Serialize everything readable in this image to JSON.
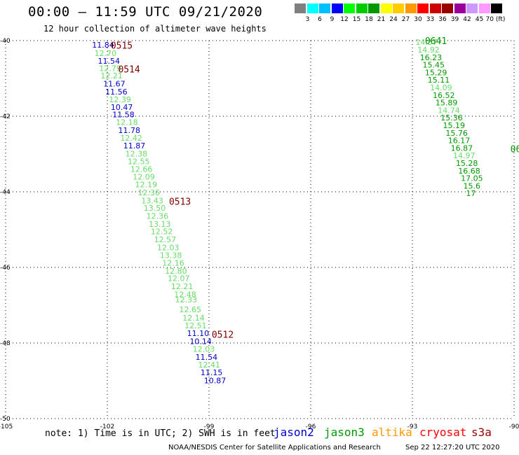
{
  "header": {
    "title": "00:00 – 11:59 UTC 09/21/2020",
    "subtitle": "12 hour collection of altimeter wave heights"
  },
  "legend": {
    "colors": [
      "#7f7f7f",
      "#00ffff",
      "#00bfff",
      "#0000ff",
      "#00ff00",
      "#00cc00",
      "#009900",
      "#ffff00",
      "#ffcc00",
      "#ff9900",
      "#ff0000",
      "#cc0000",
      "#990000",
      "#990099",
      "#cc99ff",
      "#ff99ff",
      "#000000"
    ],
    "labels": [
      "3",
      "6",
      "9",
      "12",
      "15",
      "18",
      "21",
      "24",
      "27",
      "30",
      "33",
      "36",
      "39",
      "42",
      "45",
      "70 (ft)"
    ]
  },
  "axes": {
    "lon_ticks": [
      "-105",
      "-102",
      "-99",
      "-96",
      "-93",
      "-90"
    ],
    "lat_ticks": [
      "-40",
      "-42",
      "-44",
      "-46",
      "-48",
      "-50"
    ],
    "lon_range": [
      -105,
      -90
    ],
    "lat_range": [
      -40,
      -50
    ]
  },
  "track_colors": {
    "jason2": "#0000cc",
    "jason3": "#009900",
    "light": "#66dd66",
    "time": "#800000"
  },
  "tracks": [
    {
      "name": "west",
      "points": [
        {
          "label": "11.84",
          "c": "jason2",
          "lon": -102.45,
          "lat": -40.11
        },
        {
          "label": "12.70",
          "c": "light",
          "lon": -102.38,
          "lat": -40.33
        },
        {
          "label": "11.54",
          "c": "jason2",
          "lon": -102.28,
          "lat": -40.54
        },
        {
          "label": "12.79",
          "c": "light",
          "lon": -102.24,
          "lat": -40.73
        },
        {
          "label": "12.21",
          "c": "light",
          "lon": -102.2,
          "lat": -40.93
        },
        {
          "label": "11.67",
          "c": "jason2",
          "lon": -102.12,
          "lat": -41.14
        },
        {
          "label": "11.56",
          "c": "jason2",
          "lon": -102.06,
          "lat": -41.35
        },
        {
          "label": "12.39",
          "c": "light",
          "lon": -101.95,
          "lat": -41.56
        },
        {
          "label": "10.47",
          "c": "jason2",
          "lon": -101.9,
          "lat": -41.76
        },
        {
          "label": "11.58",
          "c": "jason2",
          "lon": -101.85,
          "lat": -41.95
        },
        {
          "label": "12.18",
          "c": "light",
          "lon": -101.75,
          "lat": -42.16
        },
        {
          "label": "11.78",
          "c": "jason2",
          "lon": -101.68,
          "lat": -42.37
        },
        {
          "label": "12.42",
          "c": "light",
          "lon": -101.62,
          "lat": -42.57
        },
        {
          "label": "11.87",
          "c": "jason2",
          "lon": -101.53,
          "lat": -42.78
        },
        {
          "label": "12.38",
          "c": "light",
          "lon": -101.47,
          "lat": -42.99
        },
        {
          "label": "12.55",
          "c": "light",
          "lon": -101.4,
          "lat": -43.19
        },
        {
          "label": "12.66",
          "c": "light",
          "lon": -101.32,
          "lat": -43.4
        },
        {
          "label": "12.09",
          "c": "light",
          "lon": -101.25,
          "lat": -43.6
        },
        {
          "label": "12.19",
          "c": "light",
          "lon": -101.18,
          "lat": -43.81
        },
        {
          "label": "12.36",
          "c": "light",
          "lon": -101.1,
          "lat": -44.02
        },
        {
          "label": "13.43",
          "c": "light",
          "lon": -101.0,
          "lat": -44.23
        },
        {
          "label": "13.50",
          "c": "light",
          "lon": -100.93,
          "lat": -44.43
        },
        {
          "label": "12.36",
          "c": "light",
          "lon": -100.85,
          "lat": -44.64
        },
        {
          "label": "13.13",
          "c": "light",
          "lon": -100.78,
          "lat": -44.85
        },
        {
          "label": "12.52",
          "c": "light",
          "lon": -100.72,
          "lat": -45.05
        },
        {
          "label": "12.57",
          "c": "light",
          "lon": -100.62,
          "lat": -45.26
        },
        {
          "label": "12.03",
          "c": "light",
          "lon": -100.53,
          "lat": -45.47
        },
        {
          "label": "13.38",
          "c": "light",
          "lon": -100.45,
          "lat": -45.68
        },
        {
          "label": "12.16",
          "c": "light",
          "lon": -100.38,
          "lat": -45.88
        },
        {
          "label": "12.80",
          "c": "light",
          "lon": -100.3,
          "lat": -46.09
        },
        {
          "label": "12.07",
          "c": "light",
          "lon": -100.22,
          "lat": -46.29
        },
        {
          "label": "12.21",
          "c": "light",
          "lon": -100.12,
          "lat": -46.5
        },
        {
          "label": "12.48",
          "c": "light",
          "lon": -100.03,
          "lat": -46.71
        },
        {
          "label": "12.33",
          "c": "light",
          "lon": -100.0,
          "lat": -46.85
        },
        {
          "label": "12.65",
          "c": "light",
          "lon": -99.88,
          "lat": -47.11
        },
        {
          "label": "12.14",
          "c": "light",
          "lon": -99.78,
          "lat": -47.33
        },
        {
          "label": "12.51",
          "c": "light",
          "lon": -99.72,
          "lat": -47.54
        },
        {
          "label": "11.10",
          "c": "jason2",
          "lon": -99.65,
          "lat": -47.74
        },
        {
          "label": "10.14",
          "c": "jason2",
          "lon": -99.57,
          "lat": -47.95
        },
        {
          "label": "12.03",
          "c": "light",
          "lon": -99.48,
          "lat": -48.16
        },
        {
          "label": "11.54",
          "c": "jason2",
          "lon": -99.4,
          "lat": -48.37
        },
        {
          "label": "12.41",
          "c": "light",
          "lon": -99.32,
          "lat": -48.57
        },
        {
          "label": "11.15",
          "c": "jason2",
          "lon": -99.25,
          "lat": -48.78
        },
        {
          "label": "10.87",
          "c": "jason2",
          "lon": -99.15,
          "lat": -48.99
        }
      ],
      "times": [
        {
          "label": "0515",
          "lon": -101.9,
          "lat": -40.12
        },
        {
          "label": "0514",
          "lon": -101.68,
          "lat": -40.75
        },
        {
          "label": "0513",
          "lon": -100.18,
          "lat": -44.25
        },
        {
          "label": "0512",
          "lon": -98.92,
          "lat": -47.77
        }
      ]
    },
    {
      "name": "east",
      "points": [
        {
          "label": "14.57",
          "c": "light",
          "lon": -92.91,
          "lat": -40.04
        },
        {
          "label": "14.92",
          "c": "light",
          "lon": -92.85,
          "lat": -40.24
        },
        {
          "label": "16.23",
          "c": "jason3",
          "lon": -92.78,
          "lat": -40.44
        },
        {
          "label": "15.45",
          "c": "jason3",
          "lon": -92.7,
          "lat": -40.64
        },
        {
          "label": "15.29",
          "c": "jason3",
          "lon": -92.63,
          "lat": -40.84
        },
        {
          "label": "15.11",
          "c": "jason3",
          "lon": -92.55,
          "lat": -41.04
        },
        {
          "label": "14.09",
          "c": "light",
          "lon": -92.48,
          "lat": -41.24
        },
        {
          "label": "16.52",
          "c": "jason3",
          "lon": -92.4,
          "lat": -41.44
        },
        {
          "label": "15.89",
          "c": "jason3",
          "lon": -92.32,
          "lat": -41.64
        },
        {
          "label": "14.74",
          "c": "light",
          "lon": -92.25,
          "lat": -41.84
        },
        {
          "label": "15.36",
          "c": "jason3",
          "lon": -92.17,
          "lat": -42.04
        },
        {
          "label": "15.19",
          "c": "jason3",
          "lon": -92.1,
          "lat": -42.24
        },
        {
          "label": "15.76",
          "c": "jason3",
          "lon": -92.02,
          "lat": -42.44
        },
        {
          "label": "16.17",
          "c": "jason3",
          "lon": -91.95,
          "lat": -42.64
        },
        {
          "label": "16.87",
          "c": "jason3",
          "lon": -91.87,
          "lat": -42.84
        },
        {
          "label": "14.97",
          "c": "light",
          "lon": -91.8,
          "lat": -43.04
        },
        {
          "label": "15.28",
          "c": "jason3",
          "lon": -91.72,
          "lat": -43.24
        },
        {
          "label": "16.68",
          "c": "jason3",
          "lon": -91.65,
          "lat": -43.44
        },
        {
          "label": "17.05",
          "c": "jason3",
          "lon": -91.57,
          "lat": -43.64
        },
        {
          "label": "15.6",
          "c": "jason3",
          "lon": -91.5,
          "lat": -43.84
        },
        {
          "label": "17",
          "c": "jason3",
          "lon": -91.42,
          "lat": -44.04
        }
      ],
      "times": [
        {
          "label": "0641",
          "lon": -92.63,
          "lat": -40.0
        },
        {
          "label": "06",
          "lon": -90.11,
          "lat": -42.86
        }
      ]
    }
  ],
  "footer": {
    "note": "note: 1) Time is in UTC; 2) SWH is in feet",
    "satellites": [
      {
        "label": "jason2",
        "color": "#0000cc"
      },
      {
        "label": "jason3",
        "color": "#009900"
      },
      {
        "label": "altika",
        "color": "#ff9900"
      },
      {
        "label": "cryosat",
        "color": "#ff0000"
      },
      {
        "label": "s3a",
        "color": "#990000"
      }
    ],
    "credit": "NOAA/NESDIS Center for Satellite Applications and Research",
    "date": "Sep 22 12:27:20 UTC 2020"
  }
}
